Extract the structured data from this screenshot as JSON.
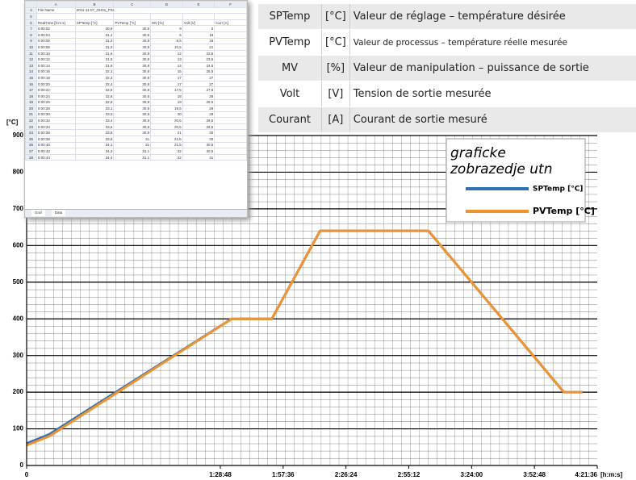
{
  "spreadsheet": {
    "col_letters": [
      "A",
      "B",
      "C",
      "D",
      "E",
      "F"
    ],
    "file_row": [
      "4",
      "File Name",
      "2011-11-07_OH01_F02"
    ],
    "blank_row": "5",
    "header_row": [
      "6",
      "RealTime [h:m:s]",
      "SPTemp [°C]",
      "PVTemp [°C]",
      "MV [%]",
      "Volt [V]",
      "Curr [A]"
    ],
    "rows": [
      [
        "7",
        "0:00:02",
        "30,9",
        "30,8",
        "9",
        "0"
      ],
      [
        "8",
        "0:00:04",
        "31,4",
        "30,8",
        "6",
        "18"
      ],
      [
        "9",
        "0:00:06",
        "31,3",
        "30,8",
        "8,5",
        "19"
      ],
      [
        "10",
        "0:00:08",
        "31,3",
        "30,8",
        "10,5",
        "21"
      ],
      [
        "11",
        "0:00:10",
        "31,6",
        "30,8",
        "12",
        "22,5"
      ],
      [
        "12",
        "0:00:12",
        "31,5",
        "30,8",
        "13",
        "23,5"
      ],
      [
        "13",
        "0:00:14",
        "31,9",
        "30,8",
        "14",
        "24,5"
      ],
      [
        "14",
        "0:00:16",
        "32,1",
        "30,8",
        "15",
        "25,5"
      ],
      [
        "15",
        "0:00:18",
        "32,2",
        "30,8",
        "17",
        "27"
      ],
      [
        "16",
        "0:00:20",
        "32,4",
        "30,8",
        "17",
        "27"
      ],
      [
        "17",
        "0:00:22",
        "32,6",
        "30,8",
        "17,5",
        "27,5"
      ],
      [
        "18",
        "0:00:24",
        "32,8",
        "30,8",
        "18",
        "28"
      ],
      [
        "19",
        "0:00:26",
        "32,9",
        "30,8",
        "19",
        "28,5"
      ],
      [
        "20",
        "0:00:28",
        "33,1",
        "30,8",
        "19,5",
        "29"
      ],
      [
        "21",
        "0:00:30",
        "33,3",
        "30,8",
        "20",
        "29"
      ],
      [
        "22",
        "0:00:32",
        "33,4",
        "30,9",
        "20,5",
        "29,5"
      ],
      [
        "23",
        "0:00:34",
        "33,6",
        "30,8",
        "20,5",
        "29,5"
      ],
      [
        "24",
        "0:00:36",
        "33,8",
        "30,9",
        "21",
        "30"
      ],
      [
        "25",
        "0:00:38",
        "33,9",
        "31",
        "21,5",
        "30"
      ],
      [
        "26",
        "0:00:40",
        "34,1",
        "31",
        "21,5",
        "30,5"
      ],
      [
        "27",
        "0:00:42",
        "34,3",
        "31,1",
        "22",
        "30,5"
      ],
      [
        "28",
        "0:00:44",
        "34,4",
        "31,1",
        "22",
        "31"
      ]
    ],
    "tabs": [
      "Graf",
      "Data"
    ]
  },
  "legend_table": {
    "rows": [
      [
        "SPTemp",
        "[°C]",
        "Valeur de réglage – température désirée"
      ],
      [
        "PVTemp",
        "[°C]",
        "Valeur de processus – température réelle mesurée"
      ],
      [
        "MV",
        "[%]",
        "Valeur de manipulation – puissance de sortie"
      ],
      [
        "Volt",
        "[V]",
        "Tension de sortie mesurée"
      ],
      [
        "Courant",
        "[A]",
        "Courant de sortie mesuré"
      ]
    ]
  },
  "chart_data": {
    "type": "line",
    "y_label": "[°C]",
    "x_unit": "[h:m:s]",
    "legend_title": [
      "graficke",
      "zobrazedje utn"
    ],
    "x": [
      0,
      627,
      5640,
      6744,
      8072,
      11053,
      14778,
      15291
    ],
    "series": [
      {
        "name": "SPTemp [°C]",
        "color": "#2e6fb7",
        "values": [
          60,
          85,
          400,
          400,
          640,
          640,
          200,
          200
        ]
      },
      {
        "name": "PVTemp [°C]",
        "color": "#f0922e",
        "values": [
          55,
          80,
          400,
          400,
          640,
          640,
          200,
          200
        ]
      }
    ],
    "xlim": [
      0,
      15696
    ],
    "xticks": [
      0,
      {
        "value": 5328,
        "label": "1:28:48"
      },
      {
        "value": 7056,
        "label": "1:57:36"
      },
      {
        "value": 8784,
        "label": "2:26:24"
      },
      {
        "value": 10512,
        "label": "2:55:12"
      },
      {
        "value": 12240,
        "label": "3:24:00"
      },
      {
        "value": 13968,
        "label": "3:52:48"
      },
      {
        "value": 15696,
        "label": "4:21:36"
      }
    ],
    "ylim": [
      0,
      900
    ],
    "yticks": [
      0,
      100,
      200,
      300,
      400,
      500,
      600,
      700,
      800,
      900
    ],
    "grid": true
  }
}
